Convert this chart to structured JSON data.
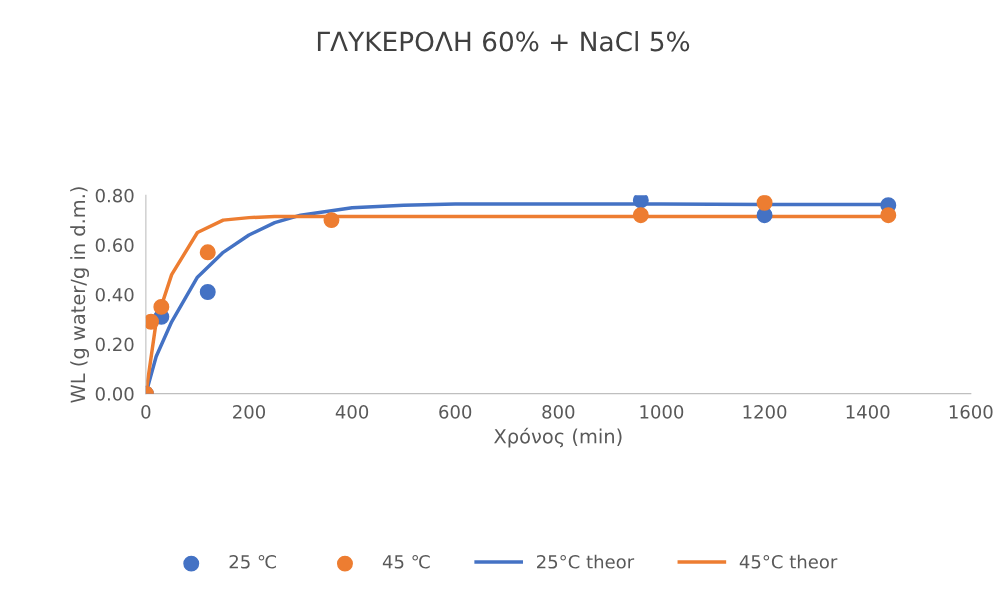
{
  "chart_data": {
    "type": "scatter",
    "title": "ΓΛΥΚΕΡΟΛΗ 60% + NaCl 5%",
    "xlabel": "Χρόνος (min)",
    "ylabel": "WL (g water/g in d.m.)",
    "xlim": [
      0,
      1600
    ],
    "xticks": [
      0,
      200,
      400,
      600,
      800,
      1000,
      1200,
      1400,
      1600
    ],
    "ylim": [
      0,
      0.8
    ],
    "yticks": [
      {
        "value": 0,
        "label": "0.00"
      },
      {
        "value": 0.2,
        "label": "0.20"
      },
      {
        "value": 0.4,
        "label": "0.40"
      },
      {
        "value": 0.6,
        "label": "0.60"
      },
      {
        "value": 0.8,
        "label": "0.80"
      }
    ],
    "grid": false,
    "legend": "bottom",
    "series": [
      {
        "name": "25 ℃",
        "marker": "circle",
        "color": "#4472c4",
        "x": [
          0,
          30,
          120,
          960,
          1200,
          1440
        ],
        "values": [
          0,
          0.31,
          0.41,
          0.78,
          0.72,
          0.76
        ]
      },
      {
        "name": "45 ℃",
        "marker": "circle",
        "color": "#ed7d31",
        "x": [
          0,
          10,
          30,
          120,
          360,
          960,
          1200,
          1440
        ],
        "values": [
          0,
          0.29,
          0.35,
          0.57,
          0.7,
          0.72,
          0.77,
          0.72
        ]
      },
      {
        "name": "25°C theor",
        "type": "line",
        "marker": "none",
        "color": "#4472c4",
        "x": [
          0,
          20,
          50,
          100,
          150,
          200,
          250,
          300,
          400,
          500,
          600,
          800,
          1000,
          1200,
          1440
        ],
        "values": [
          0,
          0.15,
          0.29,
          0.47,
          0.57,
          0.64,
          0.69,
          0.72,
          0.75,
          0.76,
          0.765,
          0.765,
          0.765,
          0.763,
          0.763
        ]
      },
      {
        "name": "45°C theor",
        "type": "line",
        "marker": "none",
        "color": "#ed7d31",
        "x": [
          0,
          20,
          50,
          100,
          150,
          200,
          250,
          300,
          400,
          600,
          800,
          1000,
          1200,
          1440
        ],
        "values": [
          0,
          0.29,
          0.48,
          0.65,
          0.7,
          0.71,
          0.715,
          0.715,
          0.715,
          0.715,
          0.715,
          0.715,
          0.715,
          0.715
        ]
      }
    ]
  }
}
